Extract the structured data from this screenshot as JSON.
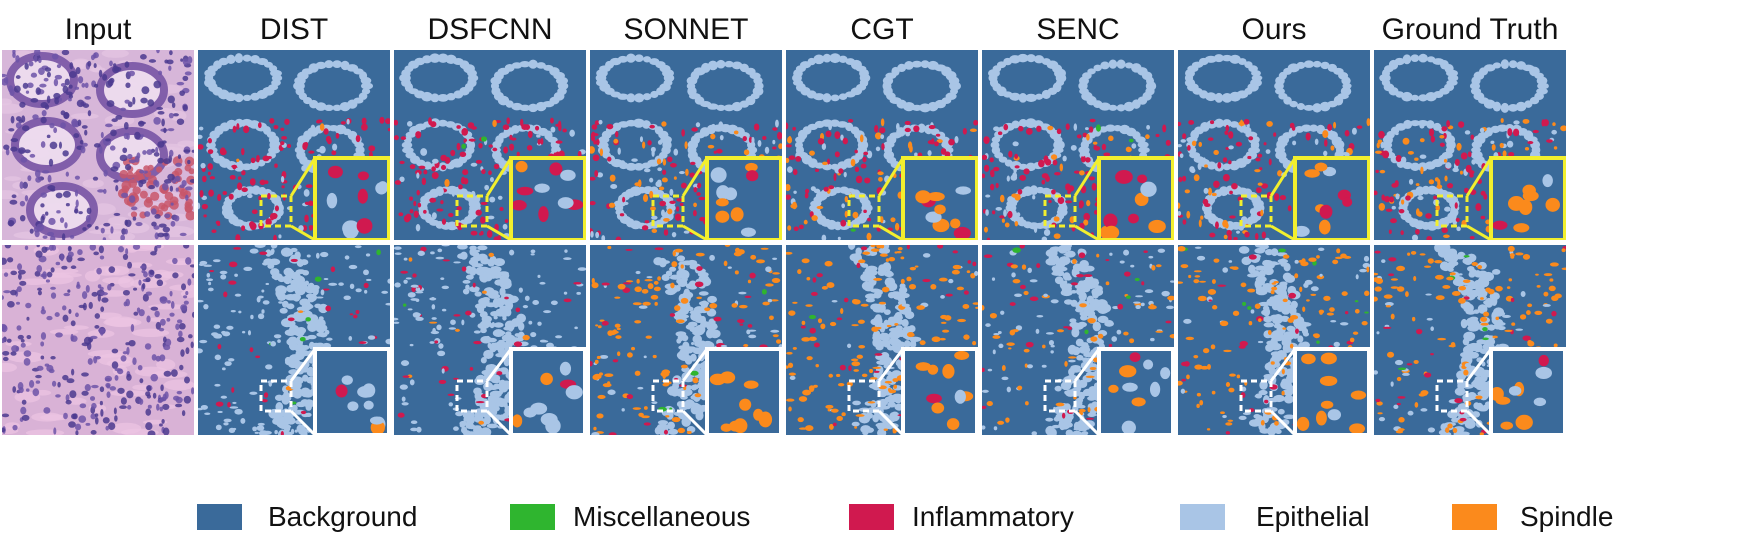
{
  "columns": [
    "Input",
    "DIST",
    "DSFCNN",
    "SONNET",
    "CGT",
    "SENC",
    "Ours",
    "Ground Truth"
  ],
  "legend": [
    {
      "label": "Background",
      "color": "#3a6a9a"
    },
    {
      "label": "Miscellaneous",
      "color": "#2fb52f"
    },
    {
      "label": "Inflammatory",
      "color": "#d0194f"
    },
    {
      "label": "Epithelial",
      "color": "#a9c5e6"
    },
    {
      "label": "Spindle",
      "color": "#fb8a1c"
    }
  ],
  "rows": [
    {
      "inset_frame_color": "#f2ef2e",
      "image_type": "H&E histology - colon glands"
    },
    {
      "inset_frame_color": "#ffffff",
      "image_type": "H&E histology - stroma and epithelium"
    }
  ]
}
